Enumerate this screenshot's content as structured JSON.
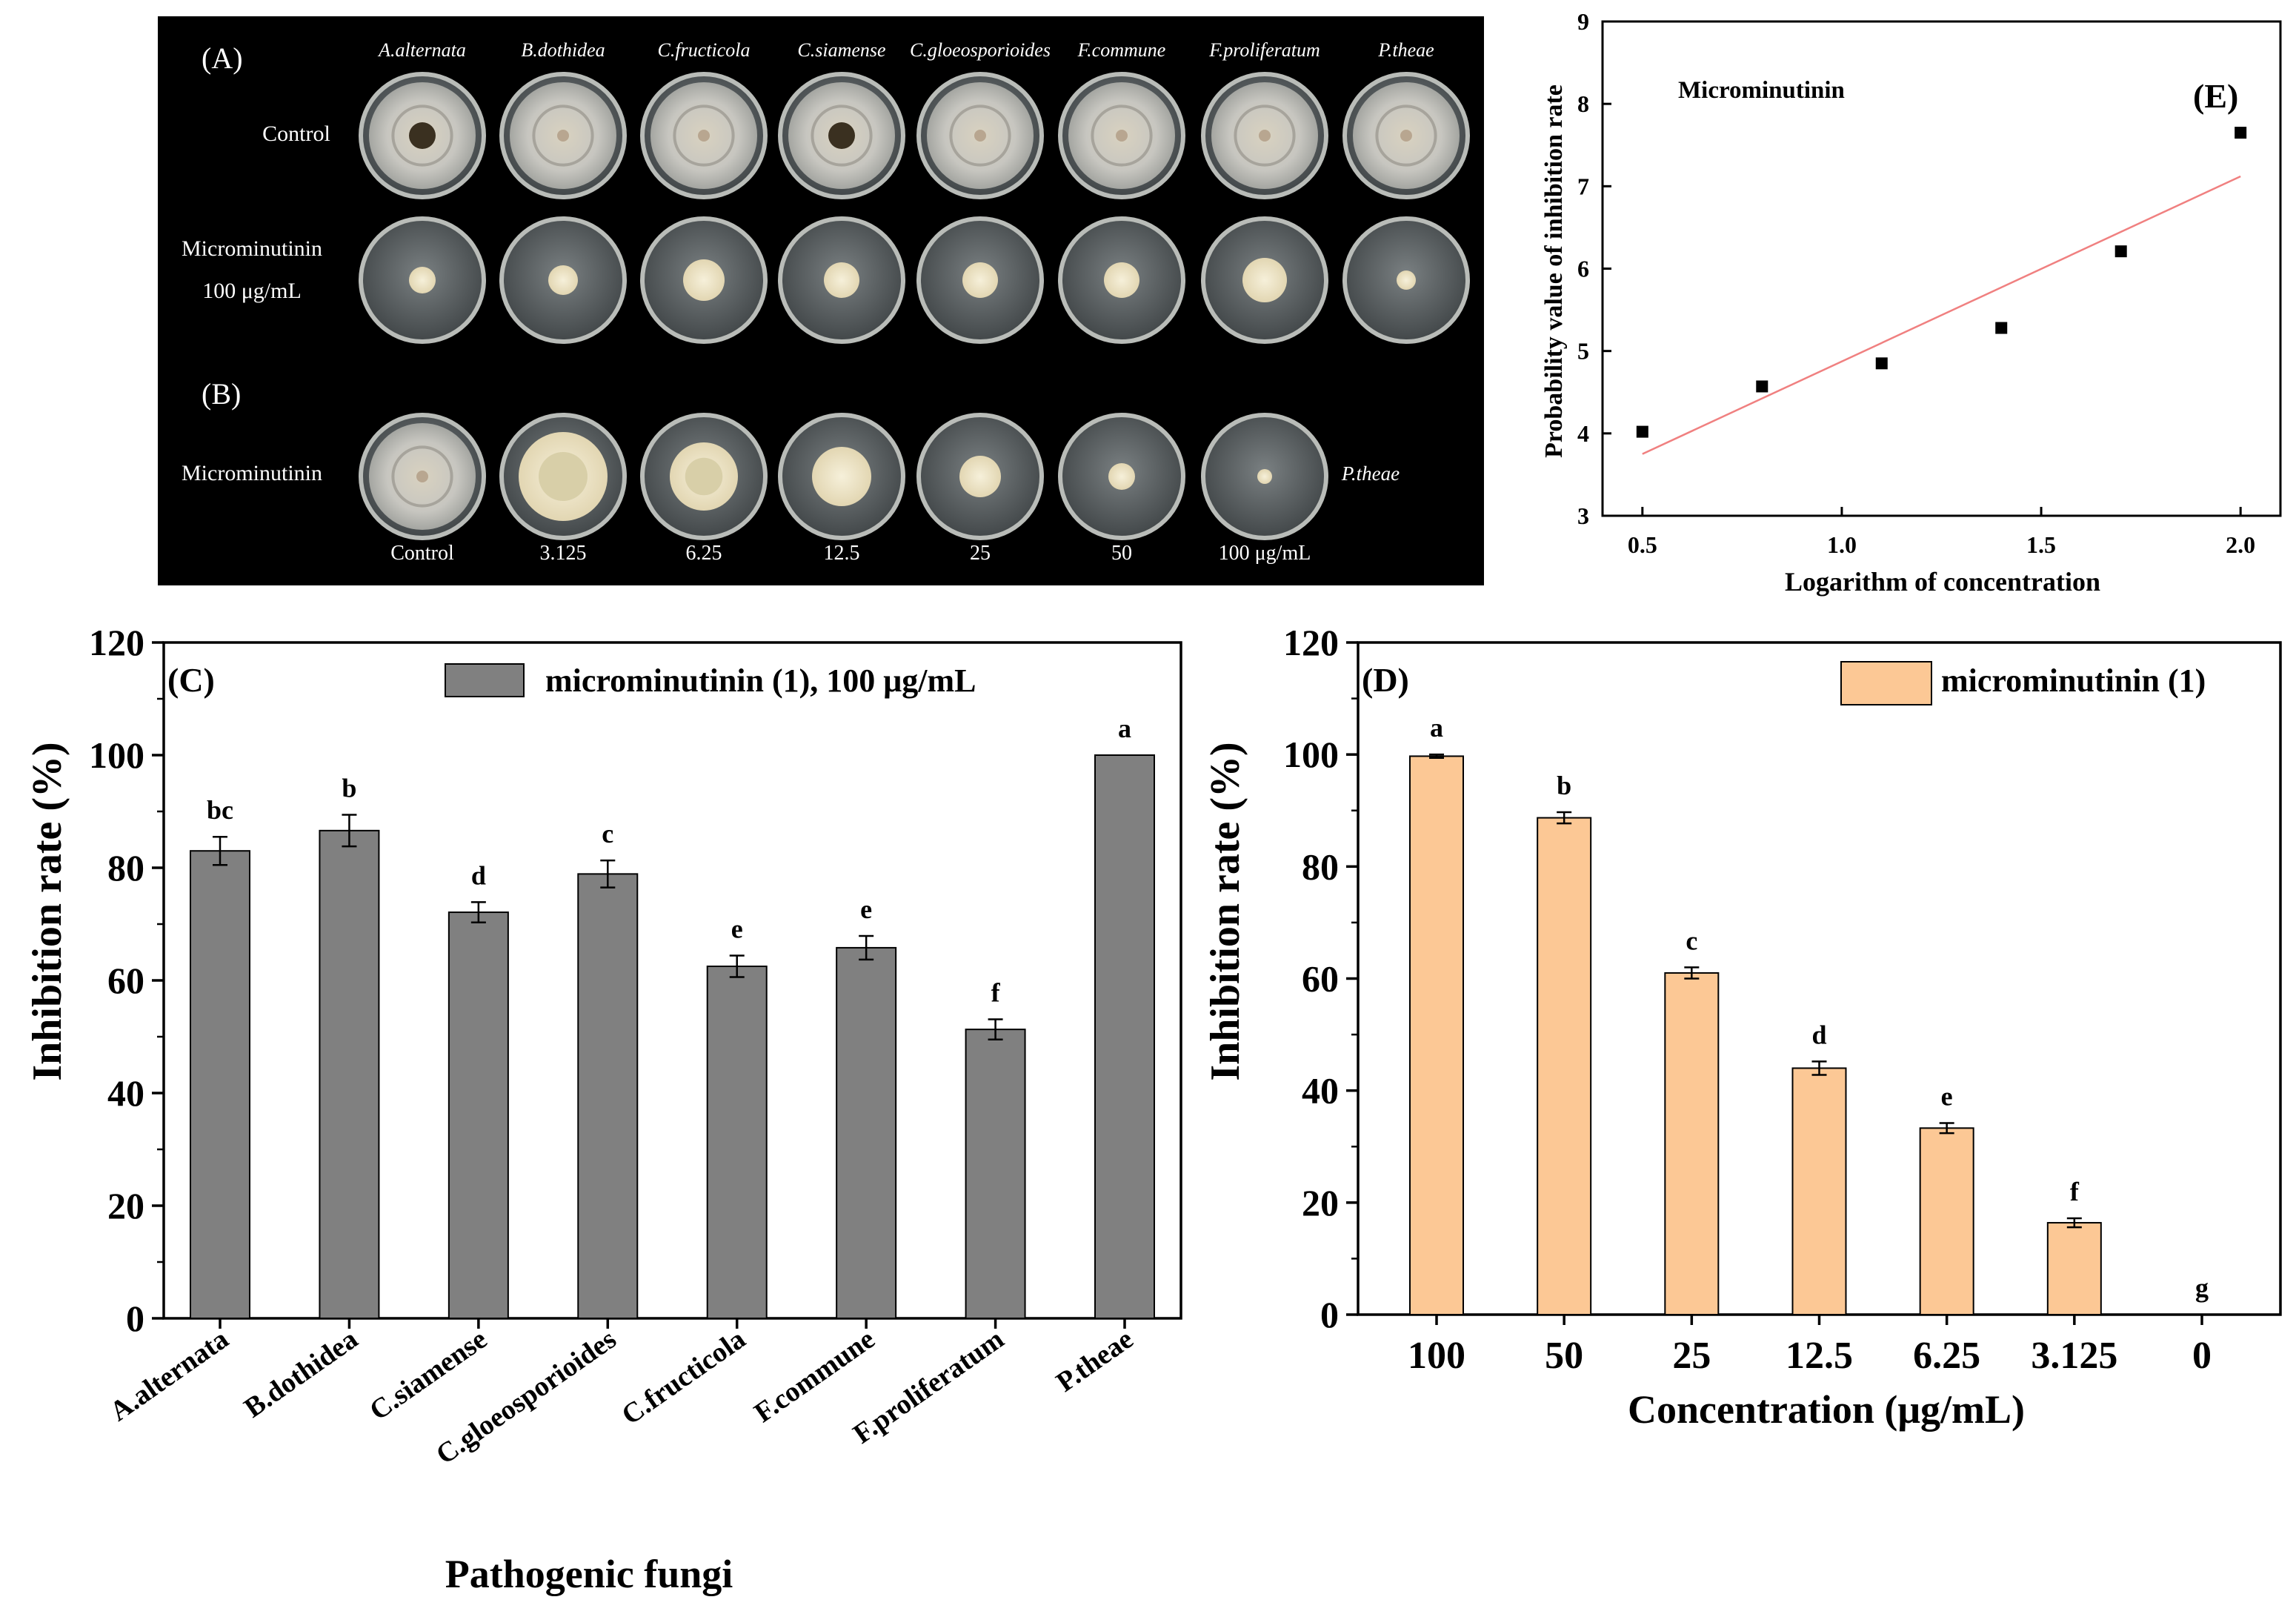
{
  "photo_panel": {
    "label_A": "(A)",
    "label_B": "(B)",
    "fungi": [
      "A.alternata",
      "B.dothidea",
      "C.fructicola",
      "C.siamense",
      "C.gloeosporioides",
      "F.commune",
      "F.proliferatum",
      "P.theae"
    ],
    "row_control": "Control",
    "row_treat_line1": "Microminutinin",
    "row_treat_line2": "100 μg/mL",
    "row_b_label": "Microminutinin",
    "row_b_species": "P.theae",
    "conc_labels": [
      "Control",
      "3.125",
      "6.25",
      "12.5",
      "25",
      "50",
      "100 μg/mL"
    ],
    "colors": {
      "background": "#000000",
      "plate_rim": "#c9ccc8",
      "agar": "#5c6163",
      "colony_light": "#ece6d2"
    }
  },
  "chart_data": [
    {
      "panel": "(E)",
      "type": "scatter",
      "annotation": "Microminutinin",
      "xlabel": "Logarithm of concentration",
      "ylabel": "Probability value of inhibition rate",
      "xlim": [
        0.4,
        2.1
      ],
      "ylim": [
        3,
        9
      ],
      "xticks": [
        0.5,
        1.0,
        1.5,
        2.0
      ],
      "xtick_labels": [
        "0.5",
        "1.0",
        "1.5",
        "2.0"
      ],
      "yticks": [
        3,
        4,
        5,
        6,
        7,
        8,
        9
      ],
      "ytick_labels": [
        "3",
        "4",
        "5",
        "6",
        "7",
        "8",
        "9"
      ],
      "points": [
        {
          "x": 0.5,
          "y": 4.02
        },
        {
          "x": 0.8,
          "y": 4.57
        },
        {
          "x": 1.1,
          "y": 4.85
        },
        {
          "x": 1.4,
          "y": 5.28
        },
        {
          "x": 1.7,
          "y": 6.21
        },
        {
          "x": 2.0,
          "y": 7.65
        }
      ],
      "fit_line": [
        {
          "x": 0.5,
          "y": 3.75
        },
        {
          "x": 2.0,
          "y": 7.12
        }
      ],
      "colors": {
        "points": "#000000",
        "fit": "#f08080"
      }
    },
    {
      "panel": "(C)",
      "type": "bar",
      "xlabel": "Pathogenic fungi",
      "ylabel": "Inhibition rate (%)",
      "ylim": [
        0,
        120
      ],
      "yticks": [
        0,
        20,
        40,
        60,
        80,
        100,
        120
      ],
      "ytick_labels": [
        "0",
        "20",
        "40",
        "60",
        "80",
        "100",
        "120"
      ],
      "categories": [
        "A.alternata",
        "B.dothidea",
        "C.siamense",
        "C.gloeosporioides",
        "C.fructicola",
        "F.commune",
        "F.proliferatum",
        "P.theae"
      ],
      "series": [
        {
          "name": "microminutinin (1), 100 μg/mL",
          "values": [
            83.0,
            86.6,
            72.1,
            78.9,
            62.5,
            65.8,
            51.3,
            100.0
          ],
          "errors": [
            2.5,
            2.8,
            1.8,
            2.4,
            1.9,
            2.1,
            1.8,
            0
          ],
          "letters": [
            "bc",
            "b",
            "d",
            "c",
            "e",
            "e",
            "f",
            "a"
          ]
        }
      ],
      "legend": "top-right",
      "colors": {
        "bar": "#808080"
      }
    },
    {
      "panel": "(D)",
      "type": "bar",
      "xlabel": "Concentration (μg/mL)",
      "ylabel": "Inhibition rate (%)",
      "ylim": [
        0,
        120
      ],
      "yticks": [
        0,
        20,
        40,
        60,
        80,
        100,
        120
      ],
      "ytick_labels": [
        "0",
        "20",
        "40",
        "60",
        "80",
        "100",
        "120"
      ],
      "categories": [
        "100",
        "50",
        "25",
        "12.5",
        "6.25",
        "3.125",
        "0"
      ],
      "series": [
        {
          "name": "microminutinin (1)",
          "values": [
            99.7,
            88.7,
            61.0,
            44.0,
            33.3,
            16.4,
            0
          ],
          "errors": [
            0.3,
            1.0,
            1.0,
            1.2,
            0.9,
            0.8,
            0
          ],
          "letters": [
            "a",
            "b",
            "c",
            "d",
            "e",
            "f",
            "g"
          ]
        }
      ],
      "legend": "top-right",
      "colors": {
        "bar": "#fcc895"
      }
    }
  ]
}
